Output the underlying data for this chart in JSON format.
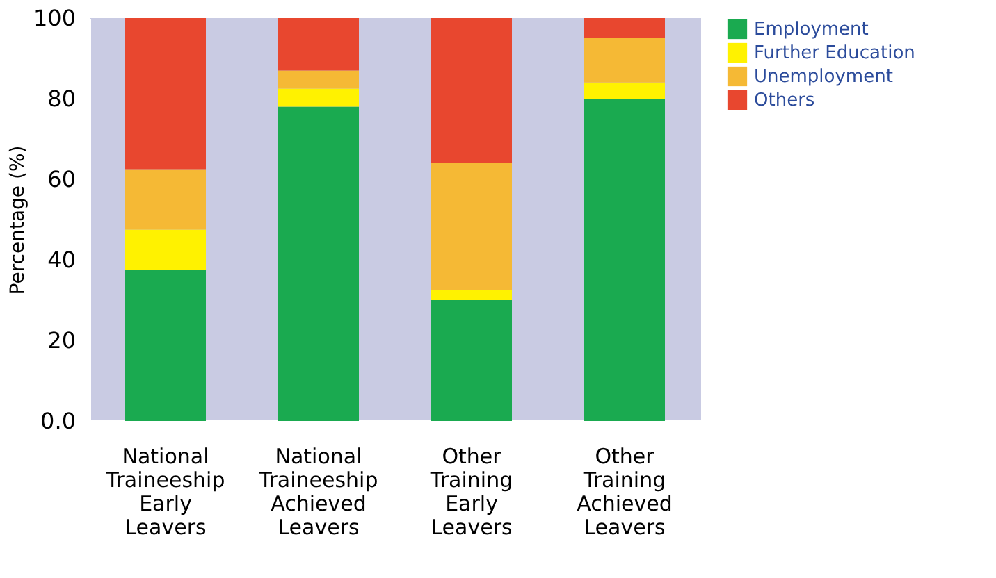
{
  "chart_data": {
    "type": "bar",
    "stacked": true,
    "ylabel": "Percentage (%)",
    "categories": [
      "National Traineeship Early Leavers",
      "National Traineeship Achieved Leavers",
      "Other Training Early Leavers",
      "Other Training Achieved Leavers"
    ],
    "series": [
      {
        "name": "Employment",
        "color": "#1aaa50",
        "values": [
          37.5,
          78,
          30,
          80
        ]
      },
      {
        "name": "Further Education",
        "color": "#fff200",
        "values": [
          10,
          4.5,
          2.5,
          4
        ]
      },
      {
        "name": "Unemployment",
        "color": "#f5b935",
        "values": [
          15,
          4.5,
          31.5,
          11
        ]
      },
      {
        "name": "Others",
        "color": "#e8472f",
        "values": [
          37.5,
          13,
          36,
          5
        ]
      }
    ],
    "ylim": [
      0,
      100
    ],
    "yticks": [
      {
        "value": 0,
        "label": "0.0"
      },
      {
        "value": 10,
        "label": null
      },
      20,
      {
        "value": 30,
        "label": null
      },
      40,
      {
        "value": 50,
        "label": null
      },
      60,
      {
        "value": 70,
        "label": null
      },
      80,
      {
        "value": 90,
        "label": null
      },
      100
    ],
    "grid": false,
    "legend": "top right"
  }
}
